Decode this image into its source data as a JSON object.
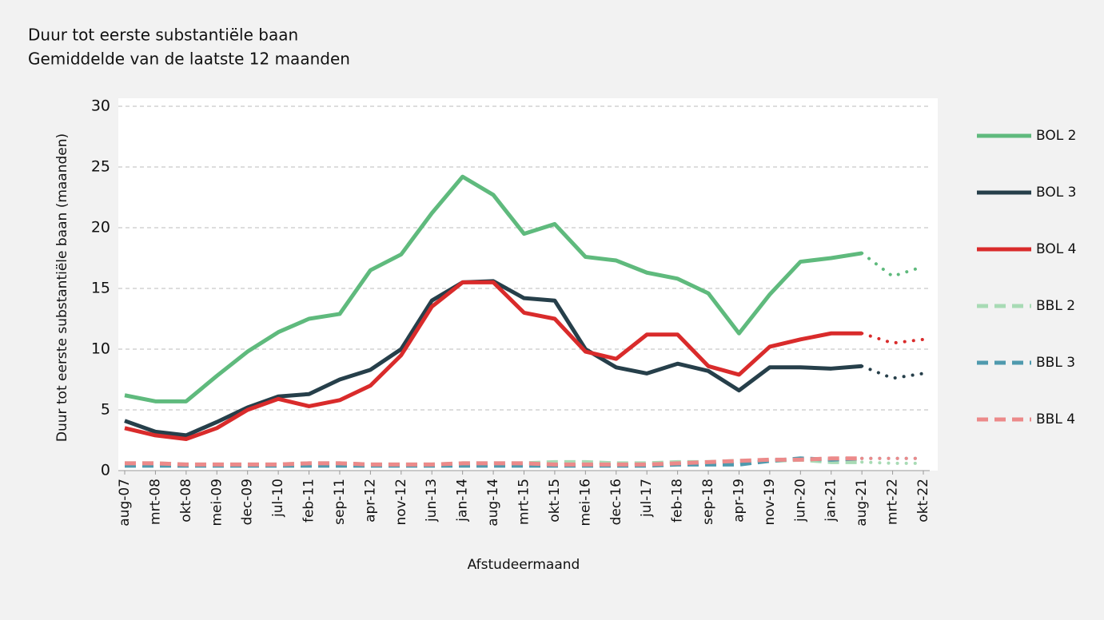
{
  "chart_data": {
    "type": "line",
    "title": "Duur tot eerste substantiële baan",
    "subtitle": "Gemiddelde van de laatste 12 maanden",
    "y_label": "Duur tot eerste substantiële baan (maanden)",
    "x_label": "Afstudeermaand",
    "categories": [
      "aug-07",
      "mrt-08",
      "okt-08",
      "mei-09",
      "dec-09",
      "jul-10",
      "feb-11",
      "sep-11",
      "apr-12",
      "nov-12",
      "jun-13",
      "jan-14",
      "aug-14",
      "mrt-15",
      "okt-15",
      "mei-16",
      "dec-16",
      "jul-17",
      "feb-18",
      "sep-18",
      "apr-19",
      "nov-19",
      "jun-20",
      "jan-21",
      "aug-21",
      "mrt-22",
      "okt-22"
    ],
    "ylim": [
      0,
      30
    ],
    "yticks": [
      0,
      5,
      10,
      15,
      20,
      25,
      30
    ],
    "grid": true,
    "legend": "right",
    "series": [
      {
        "name": "BOL 2",
        "color": "#5fba7d",
        "style": "solid",
        "values": [
          6.2,
          5.7,
          5.7,
          7.8,
          9.8,
          11.4,
          12.5,
          12.9,
          16.5,
          17.8,
          21.2,
          24.2,
          22.7,
          19.5,
          20.3,
          17.6,
          17.3,
          16.3,
          15.8,
          14.6,
          11.3,
          14.5,
          17.2,
          17.5,
          17.9,
          null,
          null
        ],
        "forecast": [
          null,
          null,
          null,
          null,
          null,
          null,
          null,
          null,
          null,
          null,
          null,
          null,
          null,
          null,
          null,
          null,
          null,
          null,
          null,
          null,
          null,
          null,
          null,
          null,
          null,
          16.0,
          16.8
        ]
      },
      {
        "name": "BOL 3",
        "color": "#263f4a",
        "style": "solid",
        "values": [
          4.1,
          3.2,
          2.9,
          4.0,
          5.2,
          6.1,
          6.3,
          7.5,
          8.3,
          10.0,
          14.0,
          15.5,
          15.6,
          14.2,
          14.0,
          10.0,
          8.5,
          8.0,
          8.8,
          8.2,
          6.6,
          8.5,
          8.5,
          8.4,
          8.6,
          null,
          null
        ],
        "forecast": [
          null,
          null,
          null,
          null,
          null,
          null,
          null,
          null,
          null,
          null,
          null,
          null,
          null,
          null,
          null,
          null,
          null,
          null,
          null,
          null,
          null,
          null,
          null,
          null,
          null,
          7.6,
          8.0
        ]
      },
      {
        "name": "BOL 4",
        "color": "#d92b2b",
        "style": "solid",
        "values": [
          3.5,
          2.9,
          2.6,
          3.5,
          5.0,
          5.9,
          5.3,
          5.8,
          7.0,
          9.5,
          13.5,
          15.5,
          15.5,
          13.0,
          12.5,
          9.8,
          9.2,
          11.2,
          11.2,
          8.6,
          7.9,
          10.2,
          10.8,
          11.3,
          11.3,
          null,
          null
        ],
        "forecast": [
          null,
          null,
          null,
          null,
          null,
          null,
          null,
          null,
          null,
          null,
          null,
          null,
          null,
          null,
          null,
          null,
          null,
          null,
          null,
          null,
          null,
          null,
          null,
          null,
          null,
          10.5,
          10.8
        ]
      },
      {
        "name": "BBL 2",
        "color": "#a8dbb5",
        "style": "dashed",
        "values": [
          0.6,
          0.6,
          0.5,
          0.5,
          0.5,
          0.5,
          0.6,
          0.6,
          0.5,
          0.5,
          0.5,
          0.6,
          0.6,
          0.6,
          0.7,
          0.7,
          0.6,
          0.6,
          0.7,
          0.7,
          0.8,
          0.8,
          0.9,
          0.7,
          0.7,
          null,
          null
        ],
        "forecast": [
          null,
          null,
          null,
          null,
          null,
          null,
          null,
          null,
          null,
          null,
          null,
          null,
          null,
          null,
          null,
          null,
          null,
          null,
          null,
          null,
          null,
          null,
          null,
          null,
          null,
          0.6,
          0.6
        ]
      },
      {
        "name": "BBL 3",
        "color": "#4f9aae",
        "style": "dashed",
        "values": [
          0.4,
          0.4,
          0.4,
          0.4,
          0.4,
          0.4,
          0.4,
          0.4,
          0.4,
          0.4,
          0.4,
          0.4,
          0.4,
          0.4,
          0.4,
          0.4,
          0.4,
          0.4,
          0.5,
          0.5,
          0.5,
          0.8,
          1.0,
          0.9,
          1.0,
          null,
          null
        ],
        "forecast": [
          null,
          null,
          null,
          null,
          null,
          null,
          null,
          null,
          null,
          null,
          null,
          null,
          null,
          null,
          null,
          null,
          null,
          null,
          null,
          null,
          null,
          null,
          null,
          null,
          null,
          1.0,
          1.0
        ]
      },
      {
        "name": "BBL 4",
        "color": "#ec8a8a",
        "style": "dashed",
        "values": [
          0.6,
          0.6,
          0.5,
          0.5,
          0.5,
          0.5,
          0.6,
          0.6,
          0.5,
          0.5,
          0.5,
          0.6,
          0.6,
          0.6,
          0.5,
          0.5,
          0.5,
          0.5,
          0.6,
          0.7,
          0.8,
          0.9,
          0.9,
          1.0,
          1.0,
          null,
          null
        ],
        "forecast": [
          null,
          null,
          null,
          null,
          null,
          null,
          null,
          null,
          null,
          null,
          null,
          null,
          null,
          null,
          null,
          null,
          null,
          null,
          null,
          null,
          null,
          null,
          null,
          null,
          null,
          1.0,
          1.0
        ]
      }
    ]
  }
}
